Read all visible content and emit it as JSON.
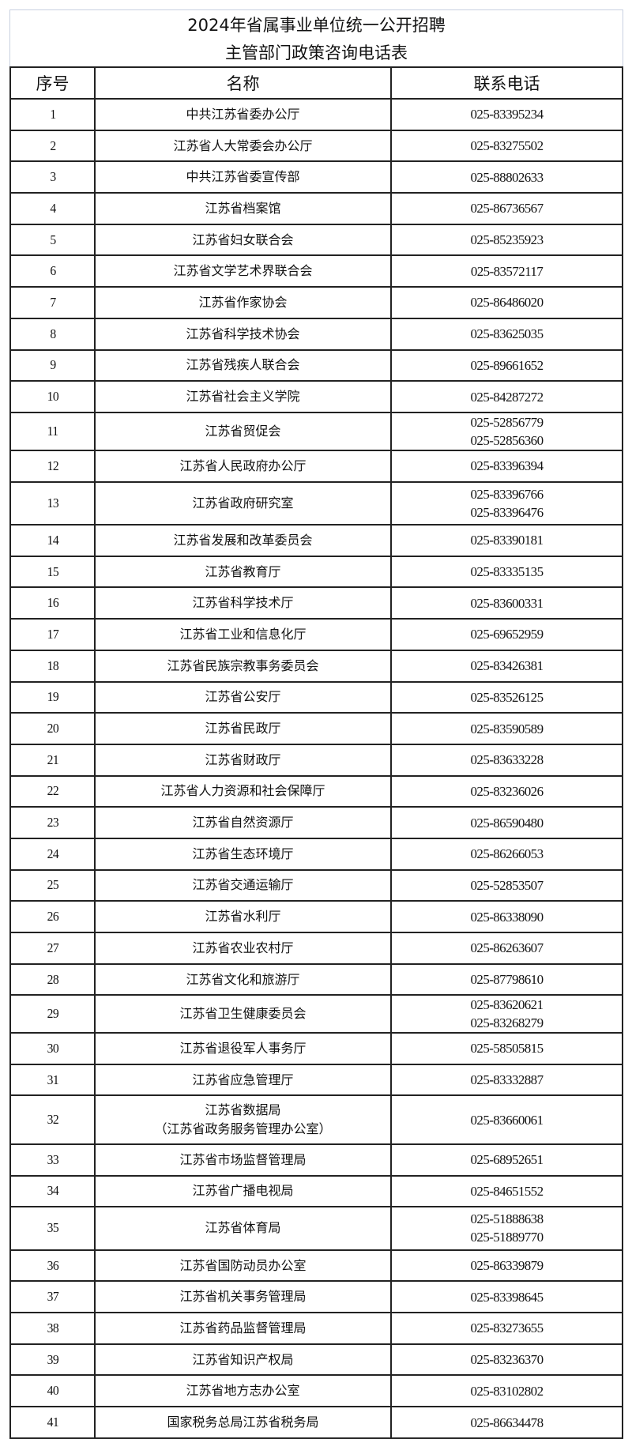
{
  "title": {
    "line1": "2024年省属事业单位统一公开招聘",
    "line2": "主管部门政策咨询电话表"
  },
  "headers": {
    "index": "序号",
    "name": "名称",
    "phone": "联系电话"
  },
  "rows": [
    {
      "no": "1",
      "name": [
        "中共江苏省委办公厅"
      ],
      "phones": [
        "025-83395234"
      ]
    },
    {
      "no": "2",
      "name": [
        "江苏省人大常委会办公厅"
      ],
      "phones": [
        "025-83275502"
      ]
    },
    {
      "no": "3",
      "name": [
        "中共江苏省委宣传部"
      ],
      "phones": [
        "025-88802633"
      ]
    },
    {
      "no": "4",
      "name": [
        "江苏省档案馆"
      ],
      "phones": [
        "025-86736567"
      ]
    },
    {
      "no": "5",
      "name": [
        "江苏省妇女联合会"
      ],
      "phones": [
        "025-85235923"
      ]
    },
    {
      "no": "6",
      "name": [
        "江苏省文学艺术界联合会"
      ],
      "phones": [
        "025-83572117"
      ]
    },
    {
      "no": "7",
      "name": [
        "江苏省作家协会"
      ],
      "phones": [
        "025-86486020"
      ]
    },
    {
      "no": "8",
      "name": [
        "江苏省科学技术协会"
      ],
      "phones": [
        "025-83625035"
      ]
    },
    {
      "no": "9",
      "name": [
        "江苏省残疾人联合会"
      ],
      "phones": [
        "025-89661652"
      ]
    },
    {
      "no": "10",
      "name": [
        "江苏省社会主义学院"
      ],
      "phones": [
        "025-84287272"
      ]
    },
    {
      "no": "11",
      "name": [
        "江苏省贸促会"
      ],
      "phones": [
        "025-52856779",
        "025-52856360"
      ]
    },
    {
      "no": "12",
      "name": [
        "江苏省人民政府办公厅"
      ],
      "phones": [
        "025-83396394"
      ]
    },
    {
      "no": "13",
      "name": [
        "江苏省政府研究室"
      ],
      "phones": [
        "025-83396766",
        "025-83396476"
      ]
    },
    {
      "no": "14",
      "name": [
        "江苏省发展和改革委员会"
      ],
      "phones": [
        "025-83390181"
      ]
    },
    {
      "no": "15",
      "name": [
        "江苏省教育厅"
      ],
      "phones": [
        "025-83335135"
      ]
    },
    {
      "no": "16",
      "name": [
        "江苏省科学技术厅"
      ],
      "phones": [
        "025-83600331"
      ]
    },
    {
      "no": "17",
      "name": [
        "江苏省工业和信息化厅"
      ],
      "phones": [
        "025-69652959"
      ]
    },
    {
      "no": "18",
      "name": [
        "江苏省民族宗教事务委员会"
      ],
      "phones": [
        "025-83426381"
      ]
    },
    {
      "no": "19",
      "name": [
        "江苏省公安厅"
      ],
      "phones": [
        "025-83526125"
      ]
    },
    {
      "no": "20",
      "name": [
        "江苏省民政厅"
      ],
      "phones": [
        "025-83590589"
      ]
    },
    {
      "no": "21",
      "name": [
        "江苏省财政厅"
      ],
      "phones": [
        "025-83633228"
      ]
    },
    {
      "no": "22",
      "name": [
        "江苏省人力资源和社会保障厅"
      ],
      "phones": [
        "025-83236026"
      ]
    },
    {
      "no": "23",
      "name": [
        "江苏省自然资源厅"
      ],
      "phones": [
        "025-86590480"
      ]
    },
    {
      "no": "24",
      "name": [
        "江苏省生态环境厅"
      ],
      "phones": [
        "025-86266053"
      ]
    },
    {
      "no": "25",
      "name": [
        "江苏省交通运输厅"
      ],
      "phones": [
        "025-52853507"
      ]
    },
    {
      "no": "26",
      "name": [
        "江苏省水利厅"
      ],
      "phones": [
        "025-86338090"
      ]
    },
    {
      "no": "27",
      "name": [
        "江苏省农业农村厅"
      ],
      "phones": [
        "025-86263607"
      ]
    },
    {
      "no": "28",
      "name": [
        "江苏省文化和旅游厅"
      ],
      "phones": [
        "025-87798610"
      ]
    },
    {
      "no": "29",
      "name": [
        "江苏省卫生健康委员会"
      ],
      "phones": [
        "025-83620621",
        "025-83268279"
      ]
    },
    {
      "no": "30",
      "name": [
        "江苏省退役军人事务厅"
      ],
      "phones": [
        "025-58505815"
      ]
    },
    {
      "no": "31",
      "name": [
        "江苏省应急管理厅"
      ],
      "phones": [
        "025-83332887"
      ]
    },
    {
      "no": "32",
      "name": [
        "江苏省数据局",
        "（江苏省政务服务管理办公室）"
      ],
      "phones": [
        "025-83660061"
      ]
    },
    {
      "no": "33",
      "name": [
        "江苏省市场监督管理局"
      ],
      "phones": [
        "025-68952651"
      ]
    },
    {
      "no": "34",
      "name": [
        "江苏省广播电视局"
      ],
      "phones": [
        "025-84651552"
      ]
    },
    {
      "no": "35",
      "name": [
        "江苏省体育局"
      ],
      "phones": [
        "025-51888638",
        "025-51889770"
      ]
    },
    {
      "no": "36",
      "name": [
        "江苏省国防动员办公室"
      ],
      "phones": [
        "025-86339879"
      ]
    },
    {
      "no": "37",
      "name": [
        "江苏省机关事务管理局"
      ],
      "phones": [
        "025-83398645"
      ]
    },
    {
      "no": "38",
      "name": [
        "江苏省药品监督管理局"
      ],
      "phones": [
        "025-83273655"
      ]
    },
    {
      "no": "39",
      "name": [
        "江苏省知识产权局"
      ],
      "phones": [
        "025-83236370"
      ]
    },
    {
      "no": "40",
      "name": [
        "江苏省地方志办公室"
      ],
      "phones": [
        "025-83102802"
      ]
    },
    {
      "no": "41",
      "name": [
        "国家税务总局江苏省税务局"
      ],
      "phones": [
        "025-86634478"
      ]
    }
  ]
}
